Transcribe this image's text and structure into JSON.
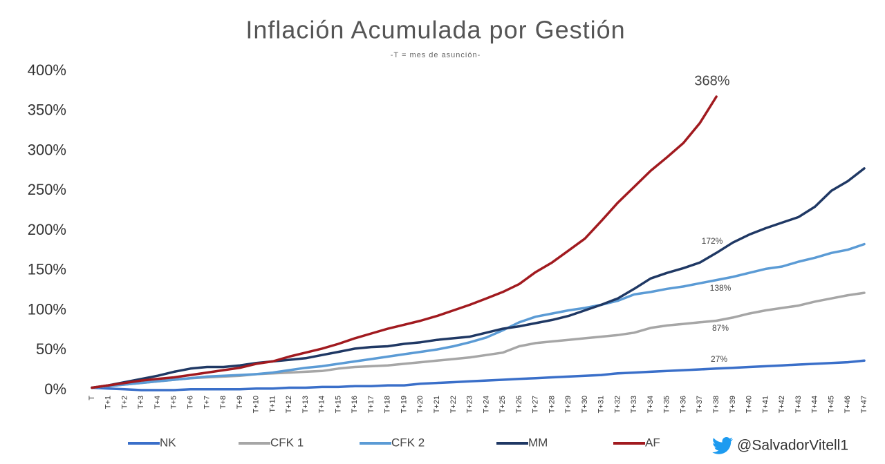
{
  "chart_data": {
    "type": "line",
    "title": "Inflación Acumulada por Gestión",
    "subtitle": "-T = mes de asunción-",
    "categories": [
      "T",
      "T+1",
      "T+2",
      "T+3",
      "T+4",
      "T+5",
      "T+6",
      "T+7",
      "T+8",
      "T+9",
      "T+10",
      "T+11",
      "T+12",
      "T+13",
      "T+14",
      "T+15",
      "T+16",
      "T+17",
      "T+18",
      "T+19",
      "T+20",
      "T+21",
      "T+22",
      "T+23",
      "T+24",
      "T+25",
      "T+26",
      "T+27",
      "T+28",
      "T+29",
      "T+30",
      "T+31",
      "T+32",
      "T+33",
      "T+34",
      "T+35",
      "T+36",
      "T+37",
      "T+38",
      "T+39",
      "T+40",
      "T+41",
      "T+42",
      "T+43",
      "T+44",
      "T+45",
      "T+46",
      "T+47"
    ],
    "series": [
      {
        "name": "NK",
        "color": "#3a6fc9",
        "values": [
          3,
          2,
          1,
          0,
          0,
          0,
          1,
          1,
          1,
          1,
          2,
          2,
          3,
          3,
          4,
          4,
          5,
          5,
          6,
          6,
          8,
          9,
          10,
          11,
          12,
          13,
          14,
          15,
          16,
          17,
          18,
          19,
          21,
          22,
          23,
          24,
          25,
          26,
          27,
          28,
          29,
          30,
          31,
          32,
          33,
          34,
          35,
          37
        ]
      },
      {
        "name": "CFK 1",
        "color": "#a6a6a6",
        "values": [
          3,
          5,
          7,
          9,
          11,
          13,
          15,
          16,
          17,
          18,
          20,
          21,
          22,
          23,
          24,
          27,
          29,
          30,
          31,
          33,
          35,
          37,
          39,
          41,
          44,
          47,
          55,
          59,
          61,
          63,
          65,
          67,
          69,
          72,
          78,
          81,
          83,
          85,
          87,
          91,
          96,
          100,
          103,
          106,
          111,
          115,
          119,
          122
        ]
      },
      {
        "name": "CFK 2",
        "color": "#5b9bd5",
        "values": [
          3,
          5,
          7,
          9,
          11,
          13,
          15,
          17,
          18,
          19,
          20,
          22,
          25,
          28,
          30,
          33,
          36,
          39,
          42,
          45,
          48,
          51,
          55,
          60,
          66,
          75,
          85,
          92,
          96,
          100,
          103,
          107,
          112,
          120,
          123,
          127,
          130,
          134,
          138,
          142,
          147,
          152,
          155,
          161,
          166,
          172,
          176,
          183
        ]
      },
      {
        "name": "MM",
        "color": "#1f3864",
        "values": [
          3,
          6,
          10,
          14,
          18,
          23,
          27,
          29,
          29,
          31,
          34,
          36,
          38,
          40,
          44,
          48,
          52,
          54,
          55,
          58,
          60,
          63,
          65,
          67,
          72,
          77,
          80,
          84,
          88,
          93,
          100,
          107,
          115,
          127,
          140,
          147,
          153,
          160,
          172,
          185,
          195,
          203,
          210,
          217,
          230,
          250,
          262,
          278
        ]
      },
      {
        "name": "AF",
        "color": "#a11a1f",
        "values": [
          3,
          6,
          9,
          12,
          14,
          16,
          19,
          22,
          25,
          28,
          33,
          36,
          42,
          47,
          52,
          58,
          65,
          71,
          77,
          82,
          87,
          93,
          100,
          107,
          115,
          123,
          133,
          148,
          160,
          175,
          190,
          212,
          235,
          255,
          275,
          292,
          310,
          335,
          368,
          null,
          null,
          null,
          null,
          null,
          null,
          null,
          null,
          null
        ]
      }
    ],
    "annotations": [
      "368%",
      "172%",
      "138%",
      "87%",
      "27%"
    ],
    "ylim": [
      0,
      400
    ],
    "yticks": [
      {
        "value": 0,
        "label": "0%"
      },
      {
        "value": 50,
        "label": "50%"
      },
      {
        "value": 100,
        "label": "100%"
      },
      {
        "value": 150,
        "label": "150%"
      },
      {
        "value": 200,
        "label": "200%"
      },
      {
        "value": 250,
        "label": "250%"
      },
      {
        "value": 300,
        "label": "300%"
      },
      {
        "value": 350,
        "label": "350%"
      },
      {
        "value": 400,
        "label": "400%"
      }
    ],
    "grid": false,
    "legend": "bottom",
    "credit": "@SalvadorVitell1"
  }
}
